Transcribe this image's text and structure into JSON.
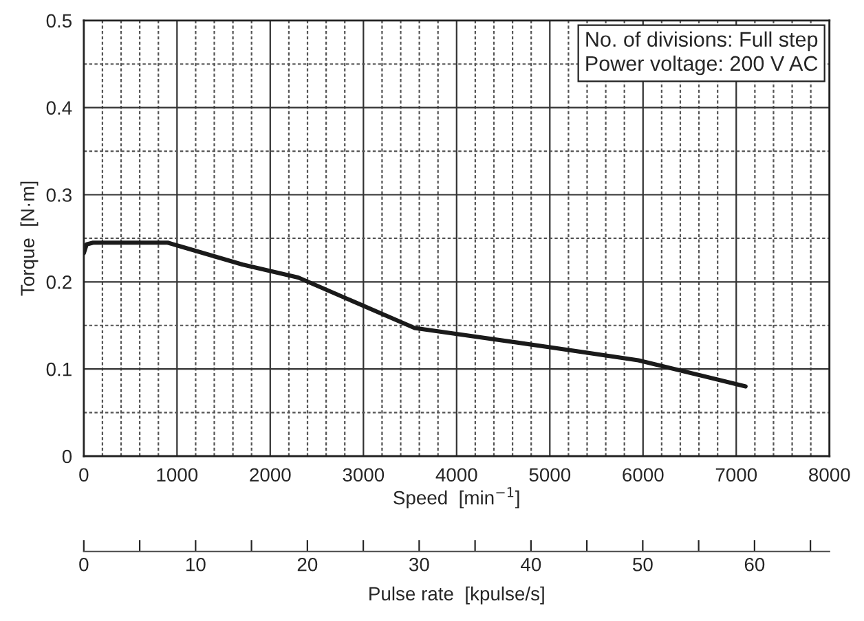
{
  "chart_data": {
    "type": "line",
    "xlabel": "Speed  [min$^{−1}$]",
    "ylabel": "Torque  [N·m]",
    "x2label": "Pulse rate  [kpulse/s]",
    "annotations": [
      "No. of divisions: Full step\nPower voltage: 200 V AC"
    ],
    "series": [
      {
        "color": "#1a1a1a",
        "x": [
          0,
          30,
          100,
          900,
          1700,
          2300,
          3550,
          5000,
          5950,
          7100
        ],
        "values": [
          0.233,
          0.243,
          0.245,
          0.245,
          0.22,
          0.205,
          0.147,
          0.125,
          0.11,
          0.08
        ]
      }
    ],
    "xlim": [
      0,
      8000
    ],
    "ylim": [
      0,
      0.5
    ],
    "xticks": [
      0,
      {
        "value": 200,
        "label": null
      },
      {
        "value": 400,
        "label": null
      },
      {
        "value": 600,
        "label": null
      },
      {
        "value": 800,
        "label": null
      },
      1000,
      {
        "value": 1200,
        "label": null
      },
      {
        "value": 1400,
        "label": null
      },
      {
        "value": 1600,
        "label": null
      },
      {
        "value": 1800,
        "label": null
      },
      2000,
      {
        "value": 2200,
        "label": null
      },
      {
        "value": 2400,
        "label": null
      },
      {
        "value": 2600,
        "label": null
      },
      {
        "value": 2800,
        "label": null
      },
      3000,
      {
        "value": 3200,
        "label": null
      },
      {
        "value": 3400,
        "label": null
      },
      {
        "value": 3600,
        "label": null
      },
      {
        "value": 3800,
        "label": null
      },
      4000,
      {
        "value": 4200,
        "label": null
      },
      {
        "value": 4400,
        "label": null
      },
      {
        "value": 4600,
        "label": null
      },
      {
        "value": 4800,
        "label": null
      },
      5000,
      {
        "value": 5200,
        "label": null
      },
      {
        "value": 5400,
        "label": null
      },
      {
        "value": 5600,
        "label": null
      },
      {
        "value": 5800,
        "label": null
      },
      6000,
      {
        "value": 6200,
        "label": null
      },
      {
        "value": 6400,
        "label": null
      },
      {
        "value": 6600,
        "label": null
      },
      {
        "value": 6800,
        "label": null
      },
      7000,
      {
        "value": 7200,
        "label": null
      },
      {
        "value": 7400,
        "label": null
      },
      {
        "value": 7600,
        "label": null
      },
      {
        "value": 7800,
        "label": null
      },
      8000
    ],
    "yticks": [
      0,
      {
        "value": 0.05,
        "label": null
      },
      0.1,
      {
        "value": 0.15,
        "label": null
      },
      0.2,
      {
        "value": 0.25,
        "label": null
      },
      0.3,
      {
        "value": 0.35,
        "label": null
      },
      0.4,
      {
        "value": 0.45,
        "label": null
      },
      0.5
    ],
    "x2lim": [
      0,
      66.7
    ],
    "x2ticks": [
      0,
      {
        "value": 5,
        "label": null
      },
      10,
      {
        "value": 15,
        "label": null
      },
      20,
      {
        "value": 25,
        "label": null
      },
      30,
      {
        "value": 35,
        "label": null
      },
      40,
      {
        "value": 45,
        "label": null
      },
      50,
      {
        "value": 55,
        "label": null
      },
      60,
      {
        "value": 65,
        "label": null
      }
    ],
    "grid": true,
    "line_style": "solid",
    "marker": "none"
  }
}
